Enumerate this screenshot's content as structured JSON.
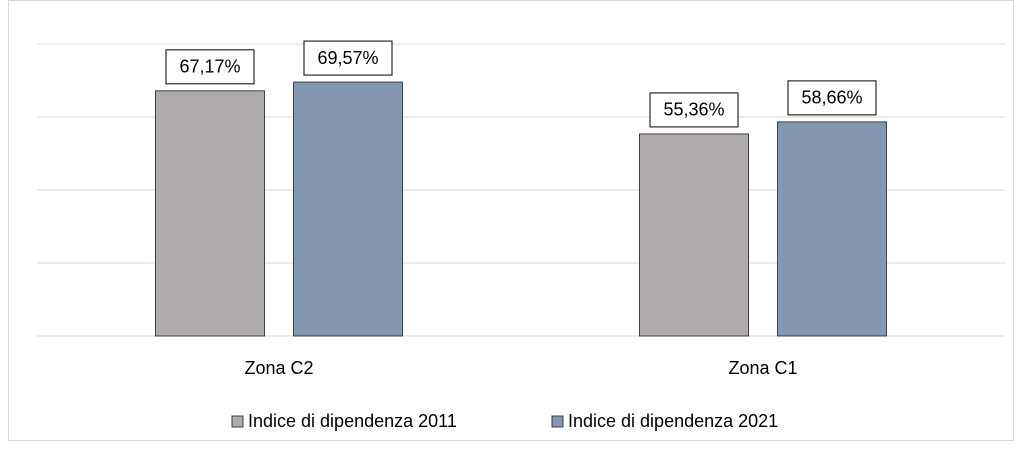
{
  "chart_data": {
    "type": "bar",
    "categories": [
      "Zona C2",
      "Zona C1"
    ],
    "series": [
      {
        "name": "Indice di dipendenza 2011",
        "color": "#afabab",
        "values": [
          67.17,
          55.36
        ],
        "value_labels": [
          "67,17%",
          "55,36%"
        ]
      },
      {
        "name": "Indice di dipendenza 2021",
        "color": "#8497b0",
        "values": [
          69.57,
          58.66
        ],
        "value_labels": [
          "69,57%",
          "58,66%"
        ]
      }
    ],
    "ylim": [
      0,
      80
    ],
    "yticks": [
      0,
      20,
      40,
      60,
      80
    ],
    "grid": true,
    "legend": "bottom"
  }
}
